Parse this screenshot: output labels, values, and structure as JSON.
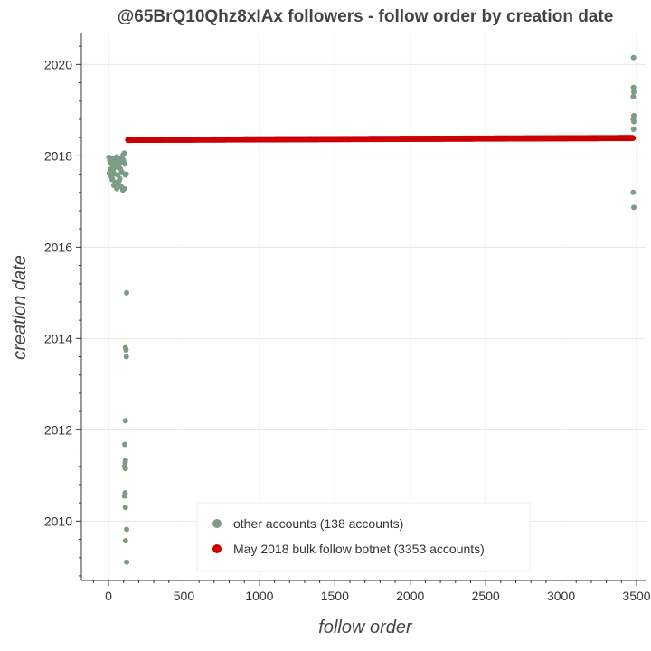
{
  "chart_data": {
    "type": "scatter",
    "title": "@65BrQ10Qhz8xIAx followers - follow order by creation date",
    "xlabel": "follow order",
    "ylabel": "creation date",
    "xlim": [
      -180,
      3560
    ],
    "ylim": [
      2008.7,
      2020.7
    ],
    "x_ticks": [
      0,
      500,
      1000,
      1500,
      2000,
      2500,
      3000,
      3500
    ],
    "y_ticks": [
      2010,
      2012,
      2014,
      2016,
      2018,
      2020
    ],
    "grid": true,
    "legend_position": "bottom-center",
    "legend": [
      "other accounts (138 accounts)",
      "May 2018 bulk follow botnet (3353 accounts)"
    ],
    "colors": {
      "other": "#7c9c85",
      "botnet": "#cc0000",
      "grid": "#e6e6e6"
    },
    "series": [
      {
        "name": "other accounts (138 accounts)",
        "color": "#7c9c85",
        "points": [
          [
            2,
            2017.97
          ],
          [
            8,
            2017.9
          ],
          [
            14,
            2017.84
          ],
          [
            20,
            2017.95
          ],
          [
            26,
            2017.78
          ],
          [
            5,
            2017.62
          ],
          [
            12,
            2017.7
          ],
          [
            18,
            2017.55
          ],
          [
            24,
            2017.48
          ],
          [
            30,
            2017.66
          ],
          [
            36,
            2017.92
          ],
          [
            42,
            2017.85
          ],
          [
            48,
            2017.75
          ],
          [
            54,
            2017.98
          ],
          [
            60,
            2017.88
          ],
          [
            66,
            2017.8
          ],
          [
            72,
            2017.94
          ],
          [
            78,
            2017.72
          ],
          [
            84,
            2017.86
          ],
          [
            90,
            2017.96
          ],
          [
            96,
            2018.02
          ],
          [
            100,
            2017.9
          ],
          [
            104,
            2018.06
          ],
          [
            108,
            2017.82
          ],
          [
            112,
            2017.58
          ],
          [
            35,
            2017.35
          ],
          [
            45,
            2017.42
          ],
          [
            55,
            2017.28
          ],
          [
            65,
            2017.38
          ],
          [
            75,
            2017.5
          ],
          [
            85,
            2017.32
          ],
          [
            95,
            2017.25
          ],
          [
            105,
            2017.28
          ],
          [
            118,
            2017.6
          ],
          [
            40,
            2017.6
          ],
          [
            62,
            2017.58
          ],
          [
            88,
            2017.65
          ],
          [
            25,
            2017.5
          ],
          [
            70,
            2017.45
          ],
          [
            120,
            2015.0
          ],
          [
            112,
            2013.8
          ],
          [
            116,
            2013.75
          ],
          [
            118,
            2013.6
          ],
          [
            112,
            2012.2
          ],
          [
            108,
            2011.68
          ],
          [
            112,
            2011.33
          ],
          [
            110,
            2011.28
          ],
          [
            106,
            2011.2
          ],
          [
            112,
            2011.15
          ],
          [
            110,
            2010.62
          ],
          [
            106,
            2010.55
          ],
          [
            112,
            2010.3
          ],
          [
            120,
            2009.82
          ],
          [
            112,
            2009.57
          ],
          [
            120,
            2009.1
          ],
          [
            3480,
            2020.15
          ],
          [
            3480,
            2019.5
          ],
          [
            3482,
            2019.4
          ],
          [
            3478,
            2019.3
          ],
          [
            3482,
            2018.88
          ],
          [
            3478,
            2018.8
          ],
          [
            3482,
            2018.75
          ],
          [
            3480,
            2018.58
          ],
          [
            3478,
            2017.2
          ],
          [
            3482,
            2016.87
          ]
        ]
      },
      {
        "name": "May 2018 bulk follow botnet (3353 accounts)",
        "color": "#cc0000",
        "x_range": [
          130,
          3475
        ],
        "y_range": [
          2018.35,
          2018.39
        ]
      }
    ]
  }
}
